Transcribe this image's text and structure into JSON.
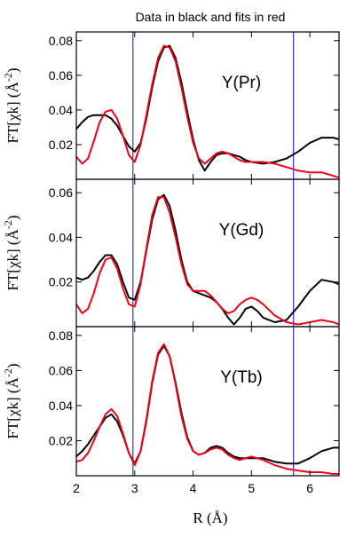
{
  "chart_data": {
    "type": "line",
    "title": "Data in black and fits in red",
    "xlabel": "R (Å)",
    "xlim": [
      2,
      6.5
    ],
    "xticks": [
      2,
      3,
      4,
      5,
      6
    ],
    "vlines": [
      2.97,
      5.72
    ],
    "colors": {
      "data": "#000000",
      "fit": "#e8001c",
      "vline": "#2323c8"
    },
    "panels": [
      {
        "label": "Y(Pr)",
        "ylabel": "FT[χk] (Å",
        "ylabel_exp": "-2",
        "ylabel_close": ")",
        "ylim": [
          0,
          0.085
        ],
        "yticks": [
          0.02,
          0.04,
          0.06,
          0.08
        ],
        "ytick_labels": [
          "0.02",
          "0.04",
          "0.06",
          "0.08"
        ],
        "series": [
          {
            "role": "data",
            "x": [
              2.0,
              2.1,
              2.2,
              2.3,
              2.4,
              2.5,
              2.6,
              2.7,
              2.8,
              2.9,
              3.0,
              3.1,
              3.2,
              3.3,
              3.4,
              3.5,
              3.6,
              3.7,
              3.8,
              3.9,
              4.0,
              4.1,
              4.2,
              4.3,
              4.4,
              4.5,
              4.6,
              4.7,
              4.8,
              4.9,
              5.0,
              5.2,
              5.4,
              5.6,
              5.8,
              6.0,
              6.2,
              6.4,
              6.5
            ],
            "y": [
              0.029,
              0.033,
              0.036,
              0.037,
              0.037,
              0.037,
              0.035,
              0.031,
              0.025,
              0.019,
              0.016,
              0.021,
              0.035,
              0.053,
              0.068,
              0.076,
              0.077,
              0.07,
              0.056,
              0.039,
              0.023,
              0.011,
              0.005,
              0.01,
              0.014,
              0.015,
              0.015,
              0.014,
              0.013,
              0.011,
              0.01,
              0.009,
              0.01,
              0.012,
              0.016,
              0.021,
              0.024,
              0.024,
              0.023
            ]
          },
          {
            "role": "fit",
            "x": [
              2.0,
              2.1,
              2.2,
              2.3,
              2.4,
              2.5,
              2.6,
              2.7,
              2.8,
              2.9,
              3.0,
              3.1,
              3.2,
              3.3,
              3.4,
              3.5,
              3.6,
              3.7,
              3.8,
              3.9,
              4.0,
              4.1,
              4.2,
              4.3,
              4.4,
              4.5,
              4.6,
              4.7,
              4.8,
              4.9,
              5.0,
              5.2,
              5.4,
              5.6,
              5.8,
              6.0,
              6.2,
              6.4,
              6.5
            ],
            "y": [
              0.013,
              0.009,
              0.012,
              0.022,
              0.033,
              0.039,
              0.04,
              0.035,
              0.025,
              0.014,
              0.01,
              0.02,
              0.037,
              0.055,
              0.07,
              0.077,
              0.076,
              0.068,
              0.053,
              0.036,
              0.021,
              0.012,
              0.009,
              0.012,
              0.015,
              0.016,
              0.015,
              0.013,
              0.011,
              0.01,
              0.01,
              0.01,
              0.009,
              0.007,
              0.005,
              0.004,
              0.004,
              0.002,
              0.001
            ]
          }
        ]
      },
      {
        "label": "Y(Gd)",
        "ylabel": "FT[χk] (Å",
        "ylabel_exp": "-2",
        "ylabel_close": ")",
        "ylim": [
          0,
          0.066
        ],
        "yticks": [
          0.02,
          0.04,
          0.06
        ],
        "ytick_labels": [
          "0.02",
          "0.04",
          "0.06"
        ],
        "series": [
          {
            "role": "data",
            "x": [
              2.0,
              2.1,
              2.2,
              2.3,
              2.4,
              2.5,
              2.6,
              2.7,
              2.8,
              2.9,
              3.0,
              3.1,
              3.2,
              3.3,
              3.4,
              3.5,
              3.6,
              3.7,
              3.8,
              3.9,
              4.0,
              4.1,
              4.2,
              4.3,
              4.4,
              4.5,
              4.6,
              4.7,
              4.8,
              4.9,
              5.0,
              5.1,
              5.2,
              5.4,
              5.6,
              5.8,
              6.0,
              6.2,
              6.4,
              6.5
            ],
            "y": [
              0.022,
              0.021,
              0.022,
              0.025,
              0.029,
              0.032,
              0.032,
              0.028,
              0.02,
              0.013,
              0.012,
              0.02,
              0.034,
              0.048,
              0.057,
              0.059,
              0.054,
              0.043,
              0.03,
              0.02,
              0.016,
              0.015,
              0.014,
              0.013,
              0.011,
              0.008,
              0.004,
              0.001,
              0.004,
              0.008,
              0.009,
              0.007,
              0.004,
              0.002,
              0.003,
              0.009,
              0.016,
              0.021,
              0.02,
              0.019
            ]
          },
          {
            "role": "fit",
            "x": [
              2.0,
              2.1,
              2.2,
              2.3,
              2.4,
              2.5,
              2.6,
              2.7,
              2.8,
              2.9,
              3.0,
              3.1,
              3.2,
              3.3,
              3.4,
              3.5,
              3.6,
              3.7,
              3.8,
              3.9,
              4.0,
              4.1,
              4.2,
              4.3,
              4.4,
              4.5,
              4.6,
              4.7,
              4.8,
              4.9,
              5.0,
              5.1,
              5.2,
              5.4,
              5.6,
              5.8,
              6.0,
              6.2,
              6.4,
              6.5
            ],
            "y": [
              0.01,
              0.006,
              0.008,
              0.015,
              0.024,
              0.03,
              0.031,
              0.026,
              0.017,
              0.01,
              0.009,
              0.019,
              0.035,
              0.05,
              0.058,
              0.058,
              0.051,
              0.04,
              0.028,
              0.019,
              0.016,
              0.016,
              0.016,
              0.014,
              0.011,
              0.008,
              0.006,
              0.007,
              0.01,
              0.012,
              0.013,
              0.012,
              0.01,
              0.005,
              0.002,
              0.001,
              0.002,
              0.003,
              0.002,
              0.001
            ]
          }
        ]
      },
      {
        "label": "Y(Tb)",
        "ylabel": "FT[χk] (Å",
        "ylabel_exp": "-2",
        "ylabel_close": ")",
        "ylim": [
          0,
          0.085
        ],
        "yticks": [
          0.02,
          0.04,
          0.06,
          0.08
        ],
        "ytick_labels": [
          "0.02",
          "0.04",
          "0.06",
          "0.08"
        ],
        "series": [
          {
            "role": "data",
            "x": [
              2.0,
              2.1,
              2.2,
              2.3,
              2.4,
              2.5,
              2.6,
              2.7,
              2.8,
              2.9,
              3.0,
              3.1,
              3.2,
              3.3,
              3.4,
              3.5,
              3.6,
              3.7,
              3.8,
              3.9,
              4.0,
              4.1,
              4.2,
              4.3,
              4.4,
              4.5,
              4.6,
              4.7,
              4.8,
              4.9,
              5.0,
              5.2,
              5.4,
              5.6,
              5.8,
              6.0,
              6.2,
              6.4,
              6.5
            ],
            "y": [
              0.011,
              0.014,
              0.018,
              0.023,
              0.028,
              0.033,
              0.035,
              0.031,
              0.023,
              0.013,
              0.007,
              0.014,
              0.031,
              0.053,
              0.069,
              0.074,
              0.068,
              0.053,
              0.036,
              0.022,
              0.014,
              0.012,
              0.013,
              0.016,
              0.017,
              0.016,
              0.013,
              0.011,
              0.01,
              0.01,
              0.01,
              0.01,
              0.008,
              0.007,
              0.007,
              0.01,
              0.014,
              0.016,
              0.016
            ]
          },
          {
            "role": "fit",
            "x": [
              2.0,
              2.1,
              2.2,
              2.3,
              2.4,
              2.5,
              2.6,
              2.7,
              2.8,
              2.9,
              3.0,
              3.1,
              3.2,
              3.3,
              3.4,
              3.5,
              3.6,
              3.7,
              3.8,
              3.9,
              4.0,
              4.1,
              4.2,
              4.3,
              4.4,
              4.5,
              4.6,
              4.7,
              4.8,
              4.9,
              5.0,
              5.2,
              5.4,
              5.6,
              5.8,
              6.0,
              6.2,
              6.4,
              6.5
            ],
            "y": [
              0.008,
              0.009,
              0.013,
              0.02,
              0.028,
              0.035,
              0.038,
              0.034,
              0.024,
              0.013,
              0.006,
              0.014,
              0.032,
              0.054,
              0.07,
              0.075,
              0.068,
              0.052,
              0.034,
              0.021,
              0.014,
              0.012,
              0.013,
              0.015,
              0.016,
              0.015,
              0.012,
              0.01,
              0.009,
              0.01,
              0.011,
              0.009,
              0.006,
              0.004,
              0.003,
              0.002,
              0.002,
              0.001,
              0.001
            ]
          }
        ]
      }
    ]
  }
}
